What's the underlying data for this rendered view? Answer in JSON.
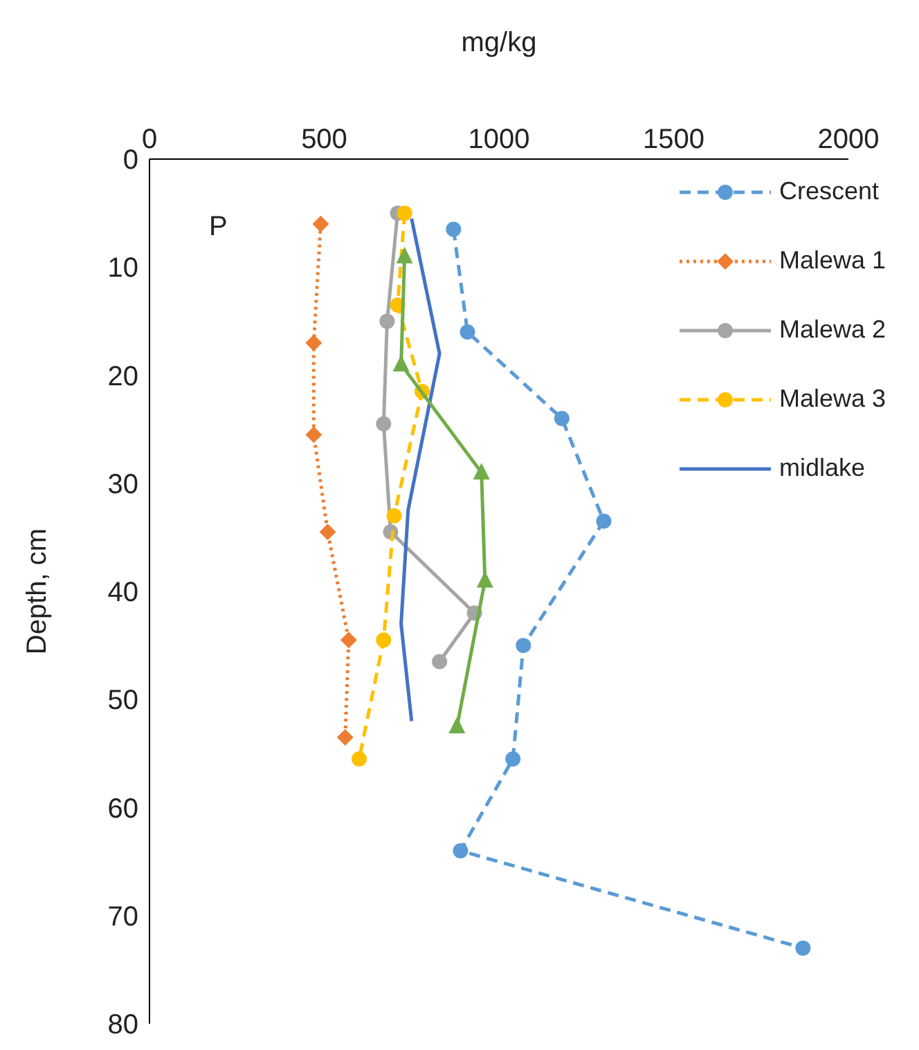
{
  "chart_data": {
    "type": "line",
    "orientation": "horizontal",
    "xlabel": "mg/kg",
    "ylabel": "Depth, cm",
    "annotations": [
      "P"
    ],
    "xlim": [
      0,
      2000
    ],
    "xticks": [
      0,
      500,
      1000,
      1500,
      2000
    ],
    "ylim": [
      80,
      0
    ],
    "yticks": [
      0,
      10,
      20,
      30,
      40,
      50,
      60,
      70,
      80
    ],
    "grid": false,
    "legend": "top right",
    "series": [
      {
        "name": "Crescent",
        "color": "#5b9bd5",
        "marker": "circle",
        "line_style": "dashed",
        "x": [
          6.5,
          16,
          24,
          33.5,
          45,
          55.5,
          64,
          73
        ],
        "values": [
          870,
          910,
          1180,
          1300,
          1070,
          1040,
          890,
          1870
        ]
      },
      {
        "name": "Malewa 1",
        "color": "#ed7d31",
        "marker": "diamond",
        "line_style": "dotted",
        "x": [
          6,
          17,
          25.5,
          34.5,
          44.5,
          53.5
        ],
        "values": [
          490,
          470,
          470,
          510,
          570,
          560
        ]
      },
      {
        "name": "Malewa 2",
        "color": "#a5a5a5",
        "marker": "circle",
        "line_style": "solid",
        "x": [
          5,
          15,
          24.5,
          34.5,
          42,
          46.5
        ],
        "values": [
          710,
          680,
          670,
          690,
          930,
          830
        ]
      },
      {
        "name": "Malewa 3",
        "color": "#ffc000",
        "marker": "circle",
        "line_style": "dashed",
        "x": [
          5,
          13.5,
          21.5,
          33,
          44.5,
          55.5
        ],
        "values": [
          730,
          710,
          780,
          700,
          670,
          600
        ]
      },
      {
        "name": "midlake",
        "color": "#4472c4",
        "marker": "none",
        "line_style": "solid",
        "x": [
          5.5,
          18,
          32.5,
          43,
          52
        ],
        "values": [
          750,
          830,
          740,
          720,
          750
        ]
      },
      {
        "color": "#70ad47",
        "marker": "triangle",
        "line_style": "solid",
        "x": [
          9,
          19,
          29,
          39,
          52.5
        ],
        "values": [
          730,
          720,
          950,
          960,
          880
        ]
      }
    ]
  }
}
